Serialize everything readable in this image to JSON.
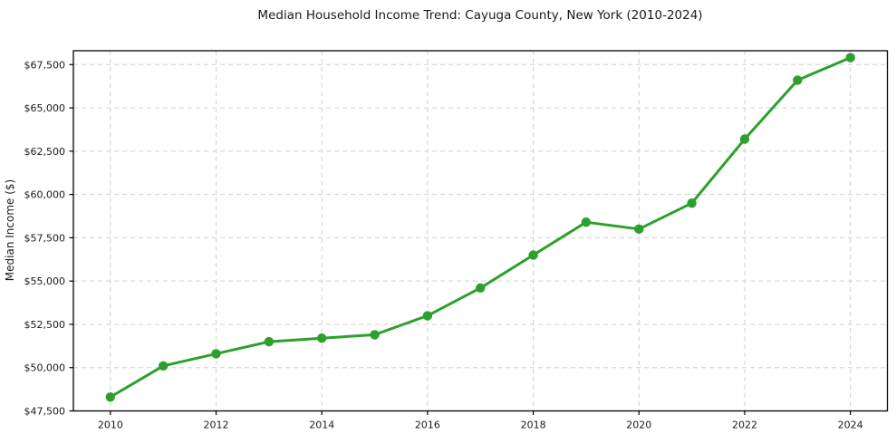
{
  "chart_data": {
    "type": "line",
    "title": "Median Household Income Trend: Cayuga County, New York (2010-2024)",
    "xlabel": "",
    "ylabel": "Median Income ($)",
    "series_name": "Median Household Income",
    "x": [
      2010,
      2011,
      2012,
      2013,
      2014,
      2015,
      2016,
      2017,
      2018,
      2019,
      2020,
      2021,
      2022,
      2023,
      2024
    ],
    "values": [
      48300,
      50100,
      50800,
      51500,
      51700,
      51900,
      53000,
      54600,
      56500,
      58400,
      58000,
      59500,
      63200,
      66600,
      67900
    ],
    "xtick_values": [
      2010,
      2012,
      2014,
      2016,
      2018,
      2020,
      2022,
      2024
    ],
    "xtick_labels": [
      "2010",
      "2012",
      "2014",
      "2016",
      "2018",
      "2020",
      "2022",
      "2024"
    ],
    "ytick_values": [
      47500,
      50000,
      52500,
      55000,
      57500,
      60000,
      62500,
      65000,
      67500
    ],
    "ytick_labels": [
      "$47,500",
      "$50,000",
      "$52,500",
      "$55,000",
      "$57,500",
      "$60,000",
      "$62,500",
      "$65,000",
      "$67,500"
    ],
    "xlim": [
      2009.3,
      2024.7
    ],
    "ylim": [
      47500,
      68300
    ],
    "grid": true,
    "grid_style": "dashed",
    "legend": null,
    "line_color": "#2ca02c",
    "marker": "circle",
    "marker_color": "#2ca02c",
    "grid_color": "#d0d0d0",
    "spine_color": "#000000",
    "text_color": "#1a1a1a",
    "background_color": "#ffffff"
  }
}
